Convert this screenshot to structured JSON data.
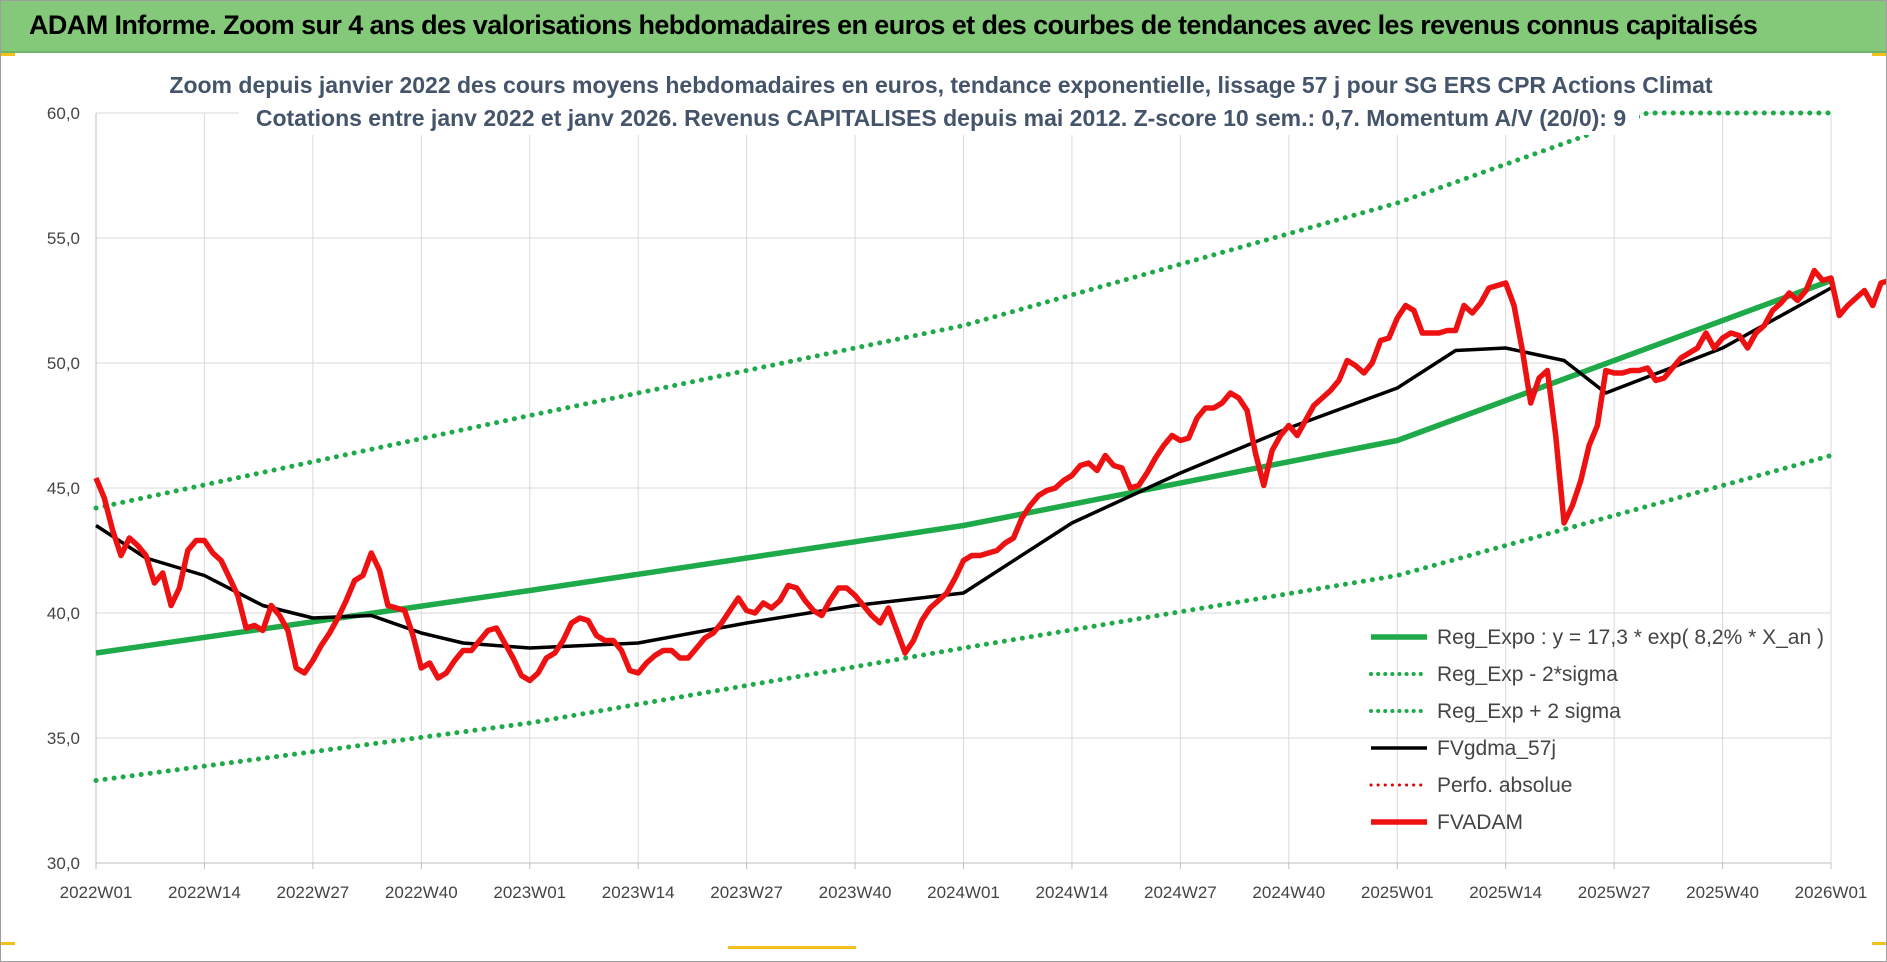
{
  "header": {
    "title": "ADAM Informe. Zoom sur 4 ans des valorisations hebdomadaires en euros et des courbes de tendances avec les revenus connus capitalisés"
  },
  "chart_data": {
    "type": "line",
    "title_line1": "Zoom depuis janvier 2022 des cours moyens hebdomadaires en euros, tendance exponentielle, lissage 57 j pour SG ERS CPR Actions Climat",
    "title_line2": "Cotations entre janv 2022 et janv 2026. Revenus CAPITALISES depuis mai 2012. Z-score 10 sem.: 0,7. Momentum A/V (20/0): 9",
    "ylim": [
      30,
      60
    ],
    "y_ticks": [
      "30,0",
      "35,0",
      "40,0",
      "45,0",
      "50,0",
      "55,0",
      "60,0"
    ],
    "x_ticks": [
      "2022W01",
      "2022W14",
      "2022W27",
      "2022W40",
      "2023W01",
      "2023W14",
      "2023W27",
      "2023W40",
      "2024W01",
      "2024W14",
      "2024W27",
      "2024W40",
      "2025W01",
      "2025W14",
      "2025W27",
      "2025W40",
      "2026W01"
    ],
    "x_range_weeks": [
      0,
      208
    ],
    "grid": true,
    "legend_position": "bottom-right",
    "series": [
      {
        "name": "Reg_Expo : y = 17,3 * exp( 8,2% *  X_an )",
        "color": "#1faa4a",
        "style": "solid",
        "points": [
          [
            0,
            38.4
          ],
          [
            52,
            40.9
          ],
          [
            104,
            43.5
          ],
          [
            156,
            46.9
          ],
          [
            208,
            53.3
          ]
        ]
      },
      {
        "name": "Reg_Exp - 2*sigma",
        "color": "#1faa4a",
        "style": "dotted",
        "points": [
          [
            0,
            33.3
          ],
          [
            52,
            35.6
          ],
          [
            104,
            38.6
          ],
          [
            156,
            41.5
          ],
          [
            208,
            46.3
          ]
        ]
      },
      {
        "name": "Reg_Exp + 2 sigma",
        "color": "#1faa4a",
        "style": "dotted",
        "points": [
          [
            0,
            44.2
          ],
          [
            52,
            47.9
          ],
          [
            104,
            51.5
          ],
          [
            156,
            56.4
          ],
          [
            182,
            59.5
          ],
          [
            186,
            60.0
          ],
          [
            208,
            60.0
          ]
        ]
      },
      {
        "name": "FVgdma_57j",
        "color": "#000000",
        "style": "solid",
        "points": [
          [
            0,
            43.5
          ],
          [
            6,
            42.2
          ],
          [
            13,
            41.5
          ],
          [
            20,
            40.3
          ],
          [
            26,
            39.8
          ],
          [
            33,
            39.9
          ],
          [
            39,
            39.2
          ],
          [
            44,
            38.8
          ],
          [
            52,
            38.6
          ],
          [
            65,
            38.8
          ],
          [
            78,
            39.6
          ],
          [
            91,
            40.3
          ],
          [
            104,
            40.8
          ],
          [
            117,
            43.6
          ],
          [
            130,
            45.6
          ],
          [
            143,
            47.4
          ],
          [
            156,
            49.0
          ],
          [
            163,
            50.5
          ],
          [
            169,
            50.6
          ],
          [
            176,
            50.1
          ],
          [
            181,
            48.8
          ],
          [
            195,
            50.6
          ],
          [
            208,
            53.0
          ]
        ]
      },
      {
        "name": "Perfo. absolue",
        "color": "#e00000",
        "style": "dotted",
        "points": []
      },
      {
        "name": "FVADAM",
        "color": "#ee1111",
        "style": "solid",
        "points": [
          [
            0,
            45.4
          ],
          [
            1,
            44.6
          ],
          [
            2,
            43.3
          ],
          [
            3,
            42.3
          ],
          [
            4,
            43.0
          ],
          [
            5,
            42.7
          ],
          [
            6,
            42.3
          ],
          [
            7,
            41.2
          ],
          [
            8,
            41.6
          ],
          [
            9,
            40.3
          ],
          [
            10,
            41.0
          ],
          [
            11,
            42.5
          ],
          [
            12,
            42.9
          ],
          [
            13,
            42.9
          ],
          [
            14,
            42.4
          ],
          [
            15,
            42.1
          ],
          [
            16,
            41.4
          ],
          [
            17,
            40.7
          ],
          [
            18,
            39.4
          ],
          [
            19,
            39.5
          ],
          [
            20,
            39.3
          ],
          [
            21,
            40.3
          ],
          [
            22,
            39.9
          ],
          [
            23,
            39.3
          ],
          [
            24,
            37.8
          ],
          [
            25,
            37.6
          ],
          [
            26,
            38.1
          ],
          [
            27,
            38.7
          ],
          [
            28,
            39.2
          ],
          [
            29,
            39.8
          ],
          [
            30,
            40.5
          ],
          [
            31,
            41.3
          ],
          [
            32,
            41.5
          ],
          [
            33,
            42.4
          ],
          [
            34,
            41.7
          ],
          [
            35,
            40.3
          ],
          [
            36,
            40.2
          ],
          [
            37,
            40.1
          ],
          [
            38,
            39.1
          ],
          [
            39,
            37.8
          ],
          [
            40,
            38.0
          ],
          [
            41,
            37.4
          ],
          [
            42,
            37.6
          ],
          [
            43,
            38.1
          ],
          [
            44,
            38.5
          ],
          [
            45,
            38.5
          ],
          [
            46,
            38.9
          ],
          [
            47,
            39.3
          ],
          [
            48,
            39.4
          ],
          [
            49,
            38.8
          ],
          [
            50,
            38.2
          ],
          [
            51,
            37.5
          ],
          [
            52,
            37.3
          ],
          [
            53,
            37.6
          ],
          [
            54,
            38.2
          ],
          [
            55,
            38.4
          ],
          [
            56,
            38.9
          ],
          [
            57,
            39.6
          ],
          [
            58,
            39.8
          ],
          [
            59,
            39.7
          ],
          [
            60,
            39.1
          ],
          [
            61,
            38.9
          ],
          [
            62,
            38.9
          ],
          [
            63,
            38.5
          ],
          [
            64,
            37.7
          ],
          [
            65,
            37.6
          ],
          [
            66,
            38.0
          ],
          [
            67,
            38.3
          ],
          [
            68,
            38.5
          ],
          [
            69,
            38.5
          ],
          [
            70,
            38.2
          ],
          [
            71,
            38.2
          ],
          [
            72,
            38.6
          ],
          [
            73,
            39.0
          ],
          [
            74,
            39.2
          ],
          [
            75,
            39.6
          ],
          [
            76,
            40.1
          ],
          [
            77,
            40.6
          ],
          [
            78,
            40.1
          ],
          [
            79,
            40.0
          ],
          [
            80,
            40.4
          ],
          [
            81,
            40.2
          ],
          [
            82,
            40.5
          ],
          [
            83,
            41.1
          ],
          [
            84,
            41.0
          ],
          [
            85,
            40.5
          ],
          [
            86,
            40.1
          ],
          [
            87,
            39.9
          ],
          [
            88,
            40.5
          ],
          [
            89,
            41.0
          ],
          [
            90,
            41.0
          ],
          [
            91,
            40.7
          ],
          [
            92,
            40.3
          ],
          [
            93,
            39.9
          ],
          [
            94,
            39.6
          ],
          [
            95,
            40.2
          ],
          [
            96,
            39.3
          ],
          [
            97,
            38.4
          ],
          [
            98,
            38.9
          ],
          [
            99,
            39.7
          ],
          [
            100,
            40.2
          ],
          [
            101,
            40.5
          ],
          [
            102,
            40.8
          ],
          [
            103,
            41.4
          ],
          [
            104,
            42.1
          ],
          [
            105,
            42.3
          ],
          [
            106,
            42.3
          ],
          [
            107,
            42.4
          ],
          [
            108,
            42.5
          ],
          [
            109,
            42.8
          ],
          [
            110,
            43.0
          ],
          [
            111,
            43.8
          ],
          [
            112,
            44.3
          ],
          [
            113,
            44.7
          ],
          [
            114,
            44.9
          ],
          [
            115,
            45.0
          ],
          [
            116,
            45.3
          ],
          [
            117,
            45.5
          ],
          [
            118,
            45.9
          ],
          [
            119,
            46.0
          ],
          [
            120,
            45.7
          ],
          [
            121,
            46.3
          ],
          [
            122,
            45.9
          ],
          [
            123,
            45.8
          ],
          [
            124,
            45.0
          ],
          [
            125,
            45.1
          ],
          [
            126,
            45.6
          ],
          [
            127,
            46.2
          ],
          [
            128,
            46.7
          ],
          [
            129,
            47.1
          ],
          [
            130,
            46.9
          ],
          [
            131,
            47.0
          ],
          [
            132,
            47.8
          ],
          [
            133,
            48.2
          ],
          [
            134,
            48.2
          ],
          [
            135,
            48.4
          ],
          [
            136,
            48.8
          ],
          [
            137,
            48.6
          ],
          [
            138,
            48.1
          ],
          [
            139,
            46.4
          ],
          [
            140,
            45.1
          ],
          [
            141,
            46.5
          ],
          [
            142,
            47.1
          ],
          [
            143,
            47.5
          ],
          [
            144,
            47.1
          ],
          [
            145,
            47.7
          ],
          [
            146,
            48.3
          ],
          [
            147,
            48.6
          ],
          [
            148,
            48.9
          ],
          [
            149,
            49.3
          ],
          [
            150,
            50.1
          ],
          [
            151,
            49.9
          ],
          [
            152,
            49.6
          ],
          [
            153,
            50.0
          ],
          [
            154,
            50.9
          ],
          [
            155,
            51.0
          ],
          [
            156,
            51.8
          ],
          [
            157,
            52.3
          ],
          [
            158,
            52.1
          ],
          [
            159,
            51.2
          ],
          [
            160,
            51.2
          ],
          [
            161,
            51.2
          ],
          [
            162,
            51.3
          ],
          [
            163,
            51.3
          ],
          [
            164,
            52.3
          ],
          [
            165,
            52.0
          ],
          [
            166,
            52.4
          ],
          [
            167,
            53.0
          ],
          [
            168,
            53.1
          ],
          [
            169,
            53.2
          ],
          [
            170,
            52.3
          ],
          [
            171,
            50.5
          ],
          [
            172,
            48.4
          ],
          [
            173,
            49.4
          ],
          [
            174,
            49.7
          ],
          [
            175,
            47.1
          ],
          [
            176,
            43.6
          ],
          [
            177,
            44.3
          ],
          [
            178,
            45.3
          ],
          [
            179,
            46.7
          ],
          [
            180,
            47.5
          ],
          [
            181,
            49.7
          ],
          [
            182,
            49.6
          ],
          [
            183,
            49.6
          ],
          [
            184,
            49.7
          ],
          [
            185,
            49.7
          ],
          [
            186,
            49.8
          ],
          [
            187,
            49.3
          ],
          [
            188,
            49.4
          ],
          [
            189,
            49.8
          ],
          [
            190,
            50.2
          ],
          [
            191,
            50.4
          ],
          [
            192,
            50.6
          ],
          [
            193,
            51.2
          ],
          [
            194,
            50.6
          ],
          [
            195,
            51.0
          ],
          [
            196,
            51.2
          ],
          [
            197,
            51.1
          ],
          [
            198,
            50.6
          ],
          [
            199,
            51.2
          ],
          [
            200,
            51.5
          ],
          [
            201,
            52.1
          ],
          [
            202,
            52.4
          ],
          [
            203,
            52.8
          ],
          [
            204,
            52.5
          ],
          [
            205,
            52.9
          ],
          [
            206,
            53.7
          ],
          [
            207,
            53.3
          ],
          [
            208,
            53.4
          ],
          [
            209,
            51.9
          ],
          [
            210,
            52.3
          ],
          [
            211,
            52.6
          ],
          [
            212,
            52.9
          ],
          [
            213,
            52.3
          ],
          [
            214,
            53.2
          ],
          [
            215,
            53.3
          ]
        ]
      }
    ]
  }
}
